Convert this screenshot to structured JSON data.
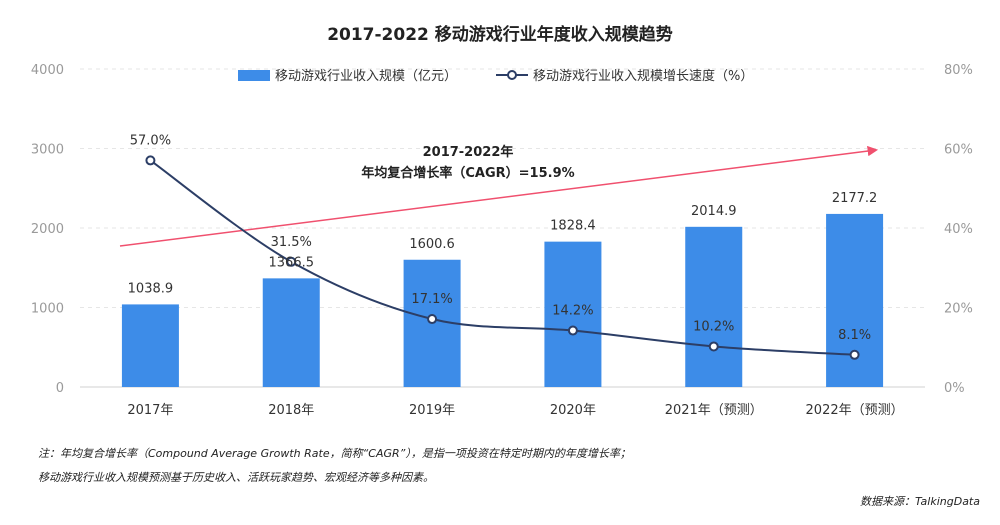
{
  "title": "2017-2022  移动游戏行业年度收入规模趋势",
  "chart_data": {
    "type": "bar",
    "categories": [
      "2017年",
      "2018年",
      "2019年",
      "2020年",
      "2021年（预测）",
      "2022年（预测）"
    ],
    "series": [
      {
        "name": "移动游戏行业收入规模（亿元）",
        "type": "bar",
        "axis": "left",
        "values": [
          1038.9,
          1366.5,
          1600.6,
          1828.4,
          2014.9,
          2177.2
        ],
        "labels": [
          "1038.9",
          "1366.5",
          "1600.6",
          "1828.4",
          "2014.9",
          "2177.2"
        ]
      },
      {
        "name": "移动游戏行业收入规模增长速度（%）",
        "type": "line",
        "axis": "right",
        "values": [
          57.0,
          31.5,
          17.1,
          14.2,
          10.2,
          8.1
        ],
        "labels": [
          "57.0%",
          "31.5%",
          "17.1%",
          "14.2%",
          "10.2%",
          "8.1%"
        ]
      }
    ],
    "ylim_left": [
      0,
      4000
    ],
    "ylim_right": [
      0,
      80
    ],
    "yticks_left": [
      "0",
      "1000",
      "2000",
      "3000",
      "4000"
    ],
    "yticks_right": [
      "0%",
      "20%",
      "40%",
      "60%",
      "80%"
    ],
    "legend_position": "top",
    "grid": true,
    "annotation": {
      "line1": "2017-2022年",
      "line2": "年均复合增长率（CAGR）=15.9%"
    }
  },
  "footnotes": [
    "注：年均复合增长率（Compound Average Growth Rate，简称“CAGR”），是指一项投资在特定时期内的年度增长率；",
    "移动游戏行业收入规模预测基于历史收入、活跃玩家趋势、宏观经济等多种因素。"
  ],
  "source": "数据来源：TalkingData",
  "colors": {
    "bar": "#3d8ce8",
    "line": "#2c3e66",
    "trend_arrow": "#f0506e",
    "axis_text": "#9a9a9a",
    "grid": "#e6e6e6"
  }
}
